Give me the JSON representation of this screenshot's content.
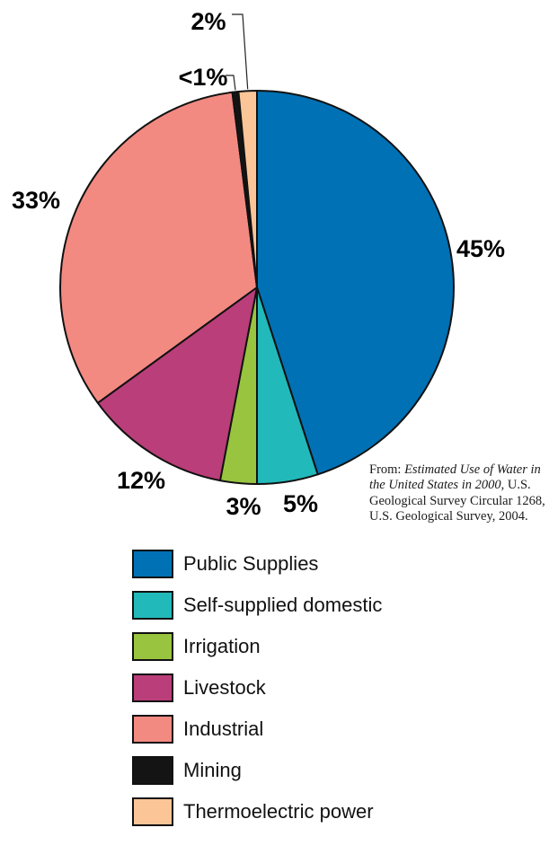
{
  "chart_data": {
    "type": "pie",
    "slices": [
      {
        "name": "Public Supplies",
        "value": 45,
        "label": "45%",
        "color": "#0071b5"
      },
      {
        "name": "Self-supplied domestic",
        "value": 5,
        "label": "5%",
        "color": "#22b9ba"
      },
      {
        "name": "Irrigation",
        "value": 3,
        "label": "3%",
        "color": "#99c43f"
      },
      {
        "name": "Livestock",
        "value": 12,
        "label": "12%",
        "color": "#ba3e79"
      },
      {
        "name": "Industrial",
        "value": 33,
        "label": "33%",
        "color": "#f28a82"
      },
      {
        "name": "Mining",
        "value": 0.5,
        "label": "<1%",
        "color": "#141414"
      },
      {
        "name": "Thermoelectric power",
        "value": 1.5,
        "label": "2%",
        "color": "#fbc597"
      }
    ],
    "legend_placement": "bottom"
  },
  "source": {
    "prefix": "From: ",
    "title": "Estimated Use of Water in the United States in 2000",
    "rest": ", U.S. Geological Survey Circular 1268, U.S. Geological Survey, 2004."
  },
  "legend": [
    {
      "label": "Public Supplies",
      "color": "#0071b5"
    },
    {
      "label": "Self-supplied domestic",
      "color": "#22b9ba"
    },
    {
      "label": "Irrigation",
      "color": "#99c43f"
    },
    {
      "label": "Livestock",
      "color": "#ba3e79"
    },
    {
      "label": "Industrial",
      "color": "#f28a82"
    },
    {
      "label": "Mining",
      "color": "#141414"
    },
    {
      "label": "Thermoelectric power",
      "color": "#fbc597"
    }
  ]
}
